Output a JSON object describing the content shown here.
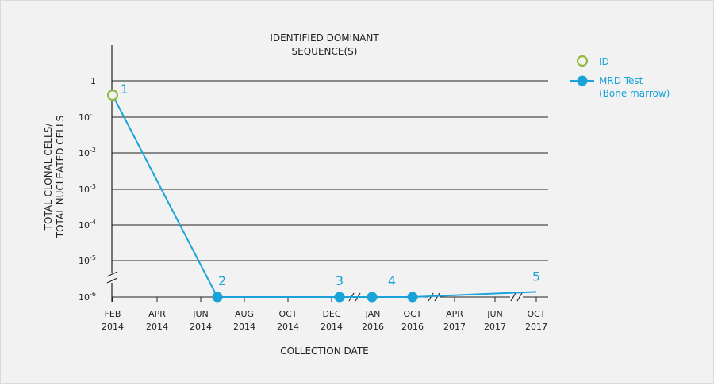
{
  "chart_data": {
    "type": "line",
    "title_line1": "IDENTIFIED DOMINANT",
    "title_line2": "SEQUENCE(S)",
    "ylabel_line1": "TOTAL CLONAL CELLS/",
    "ylabel_line2": "TOTAL NUCLEATED CELLS",
    "xlabel": "COLLECTION DATE",
    "y_scale": "log",
    "y_ticks": [
      {
        "base": "1",
        "exp": ""
      },
      {
        "base": "10",
        "exp": "-1"
      },
      {
        "base": "10",
        "exp": "-2"
      },
      {
        "base": "10",
        "exp": "-3"
      },
      {
        "base": "10",
        "exp": "-4"
      },
      {
        "base": "10",
        "exp": "-5"
      },
      {
        "base": "10",
        "exp": "-6"
      }
    ],
    "x_ticks": [
      {
        "month": "FEB",
        "year": "2014"
      },
      {
        "month": "APR",
        "year": "2014"
      },
      {
        "month": "JUN",
        "year": "2014"
      },
      {
        "month": "AUG",
        "year": "2014"
      },
      {
        "month": "OCT",
        "year": "2014"
      },
      {
        "month": "DEC",
        "year": "2014"
      },
      {
        "month": "JAN",
        "year": "2016"
      },
      {
        "month": "OCT",
        "year": "2016"
      },
      {
        "month": "APR",
        "year": "2017"
      },
      {
        "month": "JUN",
        "year": "2017"
      },
      {
        "month": "OCT",
        "year": "2017"
      }
    ],
    "axis_breaks": [
      "y-axis between 10^-5 and 10^-6",
      "x-axis between DEC 2014 and JAN 2016",
      "x-axis between OCT 2016 and APR 2017",
      "x-axis between JUN 2017 and OCT 2017"
    ],
    "grid": "horizontal",
    "legend_position": "top-right",
    "legend": [
      {
        "label": "ID",
        "marker": "open-circle",
        "color": "#8dbb3f"
      },
      {
        "label_line1": "MRD Test",
        "label_line2": "(Bone marrow)",
        "marker": "filled-circle-line",
        "color": "#1aa3d9"
      }
    ],
    "points": [
      {
        "label": "1",
        "x": "FEB 2014",
        "y": 0.4,
        "marker": "open"
      },
      {
        "label": "2",
        "x": "JUL 2014",
        "y": 1e-06,
        "marker": "filled"
      },
      {
        "label": "3",
        "x": "DEC 2014",
        "y": 1e-06,
        "marker": "filled"
      },
      {
        "label": "4",
        "x": "JAN 2016",
        "y": 1e-06,
        "marker": "filled"
      },
      {
        "label": "",
        "x": "OCT 2016",
        "y": 1e-06,
        "marker": "filled"
      },
      {
        "label": "5",
        "x": "OCT 2017",
        "y": 1.4e-06,
        "marker": "none"
      }
    ],
    "colors": {
      "series": "#1aa3d9",
      "id": "#8dbb3f",
      "grid": "#222222"
    }
  }
}
